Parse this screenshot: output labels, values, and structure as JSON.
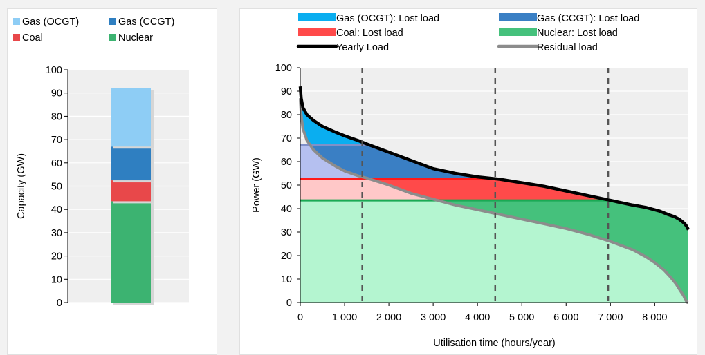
{
  "chart_data": [
    {
      "type": "bar",
      "stacked": true,
      "ylabel": "Capacity (GW)",
      "xlabel": "",
      "ylim": [
        0,
        100
      ],
      "yticks": [
        "0",
        "10",
        "20",
        "30",
        "40",
        "50",
        "60",
        "70",
        "80",
        "90",
        "100"
      ],
      "grid": true,
      "legend_position": "top",
      "series": [
        {
          "name": "Gas (OCGT)",
          "value": 25,
          "color": "#8ecdf5"
        },
        {
          "name": "Gas (CCGT)",
          "value": 14.5,
          "color": "#2f7fc1"
        },
        {
          "name": "Coal",
          "value": 9,
          "color": "#e8484a"
        },
        {
          "name": "Nuclear",
          "value": 43.5,
          "color": "#3cb371"
        }
      ],
      "legend_order": [
        "Gas (OCGT)",
        "Gas (CCGT)",
        "Coal",
        "Nuclear"
      ]
    },
    {
      "type": "area",
      "xlabel": "Utilisation time (hours/year)",
      "ylabel": "Power (GW)",
      "xlim": [
        0,
        8760
      ],
      "ylim": [
        0,
        100
      ],
      "xticks": [
        "0",
        "1 000",
        "2 000",
        "3 000",
        "4 000",
        "5 000",
        "6 000",
        "7 000",
        "8 000"
      ],
      "yticks": [
        "0",
        "10",
        "20",
        "30",
        "40",
        "50",
        "60",
        "70",
        "80",
        "90",
        "100"
      ],
      "grid": true,
      "legend_position": "top",
      "legend": [
        {
          "label": "Gas (OCGT): Lost load",
          "color": "#0aaef0",
          "kind": "box"
        },
        {
          "label": "Gas (CCGT): Lost load",
          "color": "#3a7fc4",
          "kind": "box"
        },
        {
          "label": "Coal: Lost load",
          "color": "#ff4a4a",
          "kind": "box"
        },
        {
          "label": "Nuclear: Lost load",
          "color": "#45c17c",
          "kind": "box"
        },
        {
          "label": "Yearly Load",
          "color": "#000000",
          "kind": "line"
        },
        {
          "label": "Residual load",
          "color": "#8c8c8c",
          "kind": "line"
        }
      ],
      "capacity_levels": [
        {
          "name": "Nuclear",
          "value": 43.5,
          "color": "#1aaa55",
          "fill": "#b4f5d0"
        },
        {
          "name": "Coal",
          "value": 52.5,
          "color": "#ff1a1a",
          "fill": "#ffc8c8"
        },
        {
          "name": "Gas (CCGT)",
          "value": 67,
          "color": "#8090c8",
          "fill": "#b5c0f0"
        }
      ],
      "lost_load_fills": {
        "ocgt": "#0aaef0",
        "ccgt": "#3a7fc4",
        "coal": "#ff4a4a",
        "nuclear": "#45c17c"
      },
      "breakeven_hours": [
        1400,
        4400,
        6950
      ],
      "yearly_load": {
        "x": [
          0,
          20,
          60,
          150,
          300,
          500,
          800,
          1000,
          1300,
          1500,
          2000,
          2500,
          3000,
          3500,
          4000,
          4500,
          5000,
          5500,
          6000,
          6500,
          7000,
          7500,
          7800,
          8100,
          8300,
          8450,
          8550,
          8620,
          8680,
          8720,
          8760
        ],
        "y": [
          92,
          87,
          83,
          80,
          77.5,
          75,
          72.5,
          71,
          69,
          67.5,
          64,
          60.5,
          57,
          55,
          53.5,
          52.5,
          51,
          49.5,
          47.5,
          45.5,
          43.5,
          41.5,
          40.5,
          39,
          37.5,
          36.5,
          35.5,
          34.5,
          33.5,
          32.5,
          31
        ]
      },
      "residual_load": {
        "x": [
          0,
          20,
          60,
          150,
          300,
          500,
          800,
          1000,
          1300,
          1500,
          2000,
          2500,
          3000,
          3500,
          4000,
          4500,
          5000,
          5500,
          6000,
          6500,
          7000,
          7500,
          7800,
          8000,
          8200,
          8350,
          8480,
          8580,
          8650,
          8700,
          8740,
          8760
        ],
        "y": [
          87,
          80,
          74,
          69,
          65,
          61.5,
          58,
          56,
          54,
          53,
          50,
          46.5,
          44,
          41.5,
          39.5,
          37.5,
          35.5,
          33.5,
          31.5,
          29,
          26,
          22.5,
          19.5,
          17,
          14,
          11,
          8,
          5,
          3,
          1,
          0,
          0
        ]
      }
    }
  ]
}
